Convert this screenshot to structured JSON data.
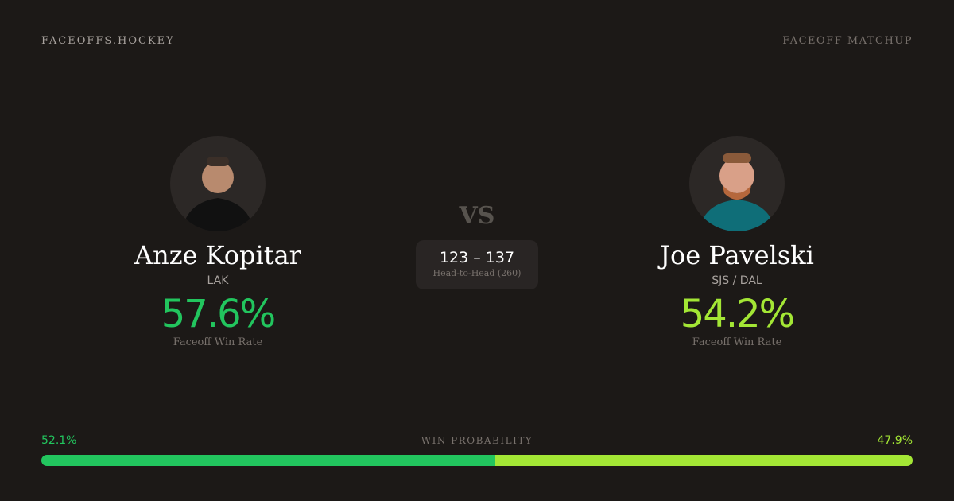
{
  "header": {
    "brand": "FACEOFFS.HOCKEY",
    "tag": "FACEOFF MATCHUP"
  },
  "colors": {
    "left": "#22c55e",
    "right": "#a3e635",
    "background": "#1c1917"
  },
  "left": {
    "name": "Anze Kopitar",
    "team": "LAK",
    "win_rate": "57.6%",
    "win_rate_label": "Faceoff Win Rate",
    "jersey": "black"
  },
  "right": {
    "name": "Joe Pavelski",
    "team": "SJS / DAL",
    "win_rate": "54.2%",
    "win_rate_label": "Faceoff Win Rate",
    "jersey": "teal"
  },
  "vs": "VS",
  "h2h": {
    "score": "123 – 137",
    "caption": "Head-to-Head (260)"
  },
  "probability": {
    "label": "WIN PROBABILITY",
    "left": "52.1%",
    "right": "47.9%",
    "left_value": 52.1,
    "right_value": 47.9
  }
}
